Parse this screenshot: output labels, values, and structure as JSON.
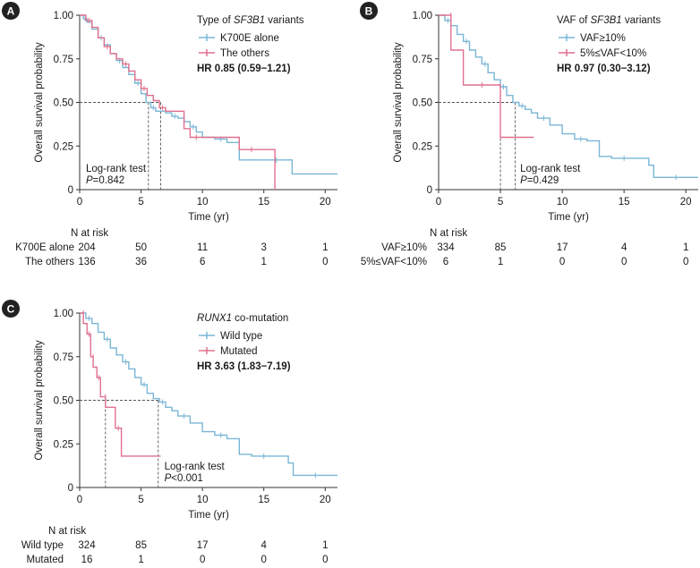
{
  "chart_data": [
    {
      "type": "line",
      "panel": "A",
      "xlabel": "Time (yr)",
      "ylabel": "Overall survival probability",
      "xlim": [
        0,
        21
      ],
      "ylim": [
        0,
        1
      ],
      "xticks": [
        "0",
        "5",
        "10",
        "15",
        "20"
      ],
      "yticks": [
        "0",
        "0.25",
        "0.50",
        "0.75",
        "1.00"
      ],
      "legend_title": [
        "Type of ",
        "SF3B1",
        " variants"
      ],
      "hr": "HR 0.85 (0.59−1.21)",
      "test_label": "Log-rank test",
      "p_prefix": "P",
      "p_value": "=0.842",
      "medians": [
        5.6,
        6.6
      ],
      "risk_header": "N at risk",
      "series": [
        {
          "name": "K700E alone",
          "color": "#7ab6d6",
          "x": [
            0,
            0.3,
            0.6,
            1,
            1.5,
            2,
            2.5,
            3,
            3.5,
            4,
            4.5,
            5,
            5.4,
            5.8,
            6.2,
            7,
            7.5,
            8,
            8.5,
            9,
            9.5,
            10,
            11,
            12,
            13,
            15,
            17,
            17.3,
            21
          ],
          "y": [
            1.0,
            0.98,
            0.96,
            0.92,
            0.87,
            0.83,
            0.78,
            0.74,
            0.7,
            0.66,
            0.61,
            0.55,
            0.5,
            0.47,
            0.45,
            0.44,
            0.42,
            0.41,
            0.39,
            0.36,
            0.33,
            0.3,
            0.29,
            0.27,
            0.17,
            0.17,
            0.17,
            0.09,
            0.09
          ],
          "risk": [
            "204",
            "50",
            "11",
            "3",
            "1"
          ]
        },
        {
          "name": "The others",
          "color": "#e0708e",
          "x": [
            0,
            0.5,
            1,
            1.5,
            2,
            2.5,
            3,
            3.5,
            4,
            4.5,
            5,
            5.5,
            6,
            6.5,
            7,
            8.5,
            9,
            10,
            12.5,
            13,
            15,
            15.9
          ],
          "y": [
            1.0,
            0.97,
            0.93,
            0.87,
            0.82,
            0.78,
            0.75,
            0.72,
            0.68,
            0.63,
            0.58,
            0.54,
            0.51,
            0.47,
            0.45,
            0.35,
            0.3,
            0.3,
            0.3,
            0.23,
            0.23,
            0.0
          ],
          "risk": [
            "136",
            "36",
            "6",
            "1",
            "0"
          ]
        }
      ]
    },
    {
      "type": "line",
      "panel": "B",
      "xlabel": "Time (yr)",
      "ylabel": "Overall survival probability",
      "xlim": [
        0,
        21
      ],
      "ylim": [
        0,
        1
      ],
      "xticks": [
        "0",
        "5",
        "10",
        "15",
        "20"
      ],
      "yticks": [
        "0",
        "0.25",
        "0.50",
        "0.75",
        "1.00"
      ],
      "legend_title": [
        "VAF of ",
        "SF3B1",
        " variants"
      ],
      "hr": "HR 0.97 (0.30−3.12)",
      "test_label": "Log-rank test",
      "p_prefix": "P",
      "p_value": "=0.429",
      "medians": [
        5.0,
        6.2
      ],
      "risk_header": "N at risk",
      "series": [
        {
          "name": "VAF≥10%",
          "color": "#7ab6d6",
          "x": [
            0,
            0.5,
            1,
            1.5,
            2,
            2.5,
            3,
            3.5,
            4,
            4.5,
            5,
            5.5,
            6,
            6.5,
            7,
            7.5,
            8,
            9,
            10,
            11,
            12,
            13,
            14,
            16,
            17,
            17.4,
            21
          ],
          "y": [
            1.0,
            0.97,
            0.94,
            0.89,
            0.85,
            0.8,
            0.76,
            0.72,
            0.67,
            0.63,
            0.59,
            0.54,
            0.5,
            0.48,
            0.46,
            0.44,
            0.41,
            0.37,
            0.32,
            0.29,
            0.28,
            0.19,
            0.18,
            0.18,
            0.14,
            0.07,
            0.07
          ],
          "risk": [
            "334",
            "85",
            "17",
            "4",
            "1"
          ]
        },
        {
          "name": "5%≤VAF<10%",
          "color": "#e0708e",
          "x": [
            0,
            1,
            1,
            2,
            2,
            5,
            5,
            7.7
          ],
          "y": [
            1.0,
            1.0,
            0.8,
            0.8,
            0.6,
            0.6,
            0.3,
            0.3
          ],
          "risk": [
            "6",
            "1",
            "0",
            "0",
            "0"
          ]
        }
      ]
    },
    {
      "type": "line",
      "panel": "C",
      "xlabel": "Time (yr)",
      "ylabel": "Overall survival probability",
      "xlim": [
        0,
        21
      ],
      "ylim": [
        0,
        1
      ],
      "xticks": [
        "0",
        "5",
        "10",
        "15",
        "20"
      ],
      "yticks": [
        "0",
        "0.25",
        "0.50",
        "0.75",
        "1.00"
      ],
      "legend_title": [
        "",
        "RUNX1",
        " co-mutation"
      ],
      "hr": "HR 3.63 (1.83−7.19)",
      "test_label": "Log-rank test",
      "p_prefix": "P",
      "p_value": "<0.001",
      "medians": [
        2.1,
        6.4
      ],
      "risk_header": "N at risk",
      "series": [
        {
          "name": "Wild type",
          "color": "#7ab6d6",
          "x": [
            0,
            0.5,
            1,
            1.5,
            2,
            2.5,
            3,
            3.5,
            4,
            4.5,
            5,
            5.5,
            6,
            6.5,
            7,
            7.5,
            8,
            9,
            10,
            11,
            12,
            13,
            14,
            16,
            17,
            17.4,
            21
          ],
          "y": [
            1.0,
            0.97,
            0.94,
            0.89,
            0.85,
            0.8,
            0.76,
            0.72,
            0.68,
            0.63,
            0.59,
            0.54,
            0.51,
            0.49,
            0.46,
            0.44,
            0.41,
            0.37,
            0.32,
            0.3,
            0.28,
            0.19,
            0.18,
            0.18,
            0.14,
            0.07,
            0.07
          ],
          "risk": [
            "324",
            "85",
            "17",
            "4",
            "1"
          ]
        },
        {
          "name": "Mutated",
          "color": "#e0708e",
          "x": [
            0,
            0.3,
            0.3,
            0.6,
            0.6,
            0.9,
            0.9,
            1.1,
            1.1,
            1.4,
            1.4,
            1.7,
            1.7,
            2.1,
            2.1,
            2.9,
            2.9,
            3.4,
            3.4,
            6.6
          ],
          "y": [
            1.0,
            1.0,
            0.94,
            0.94,
            0.88,
            0.88,
            0.75,
            0.75,
            0.69,
            0.69,
            0.63,
            0.63,
            0.52,
            0.52,
            0.46,
            0.46,
            0.34,
            0.34,
            0.18,
            0.18
          ],
          "risk": [
            "16",
            "1",
            "0",
            "0",
            "0"
          ]
        }
      ]
    }
  ]
}
